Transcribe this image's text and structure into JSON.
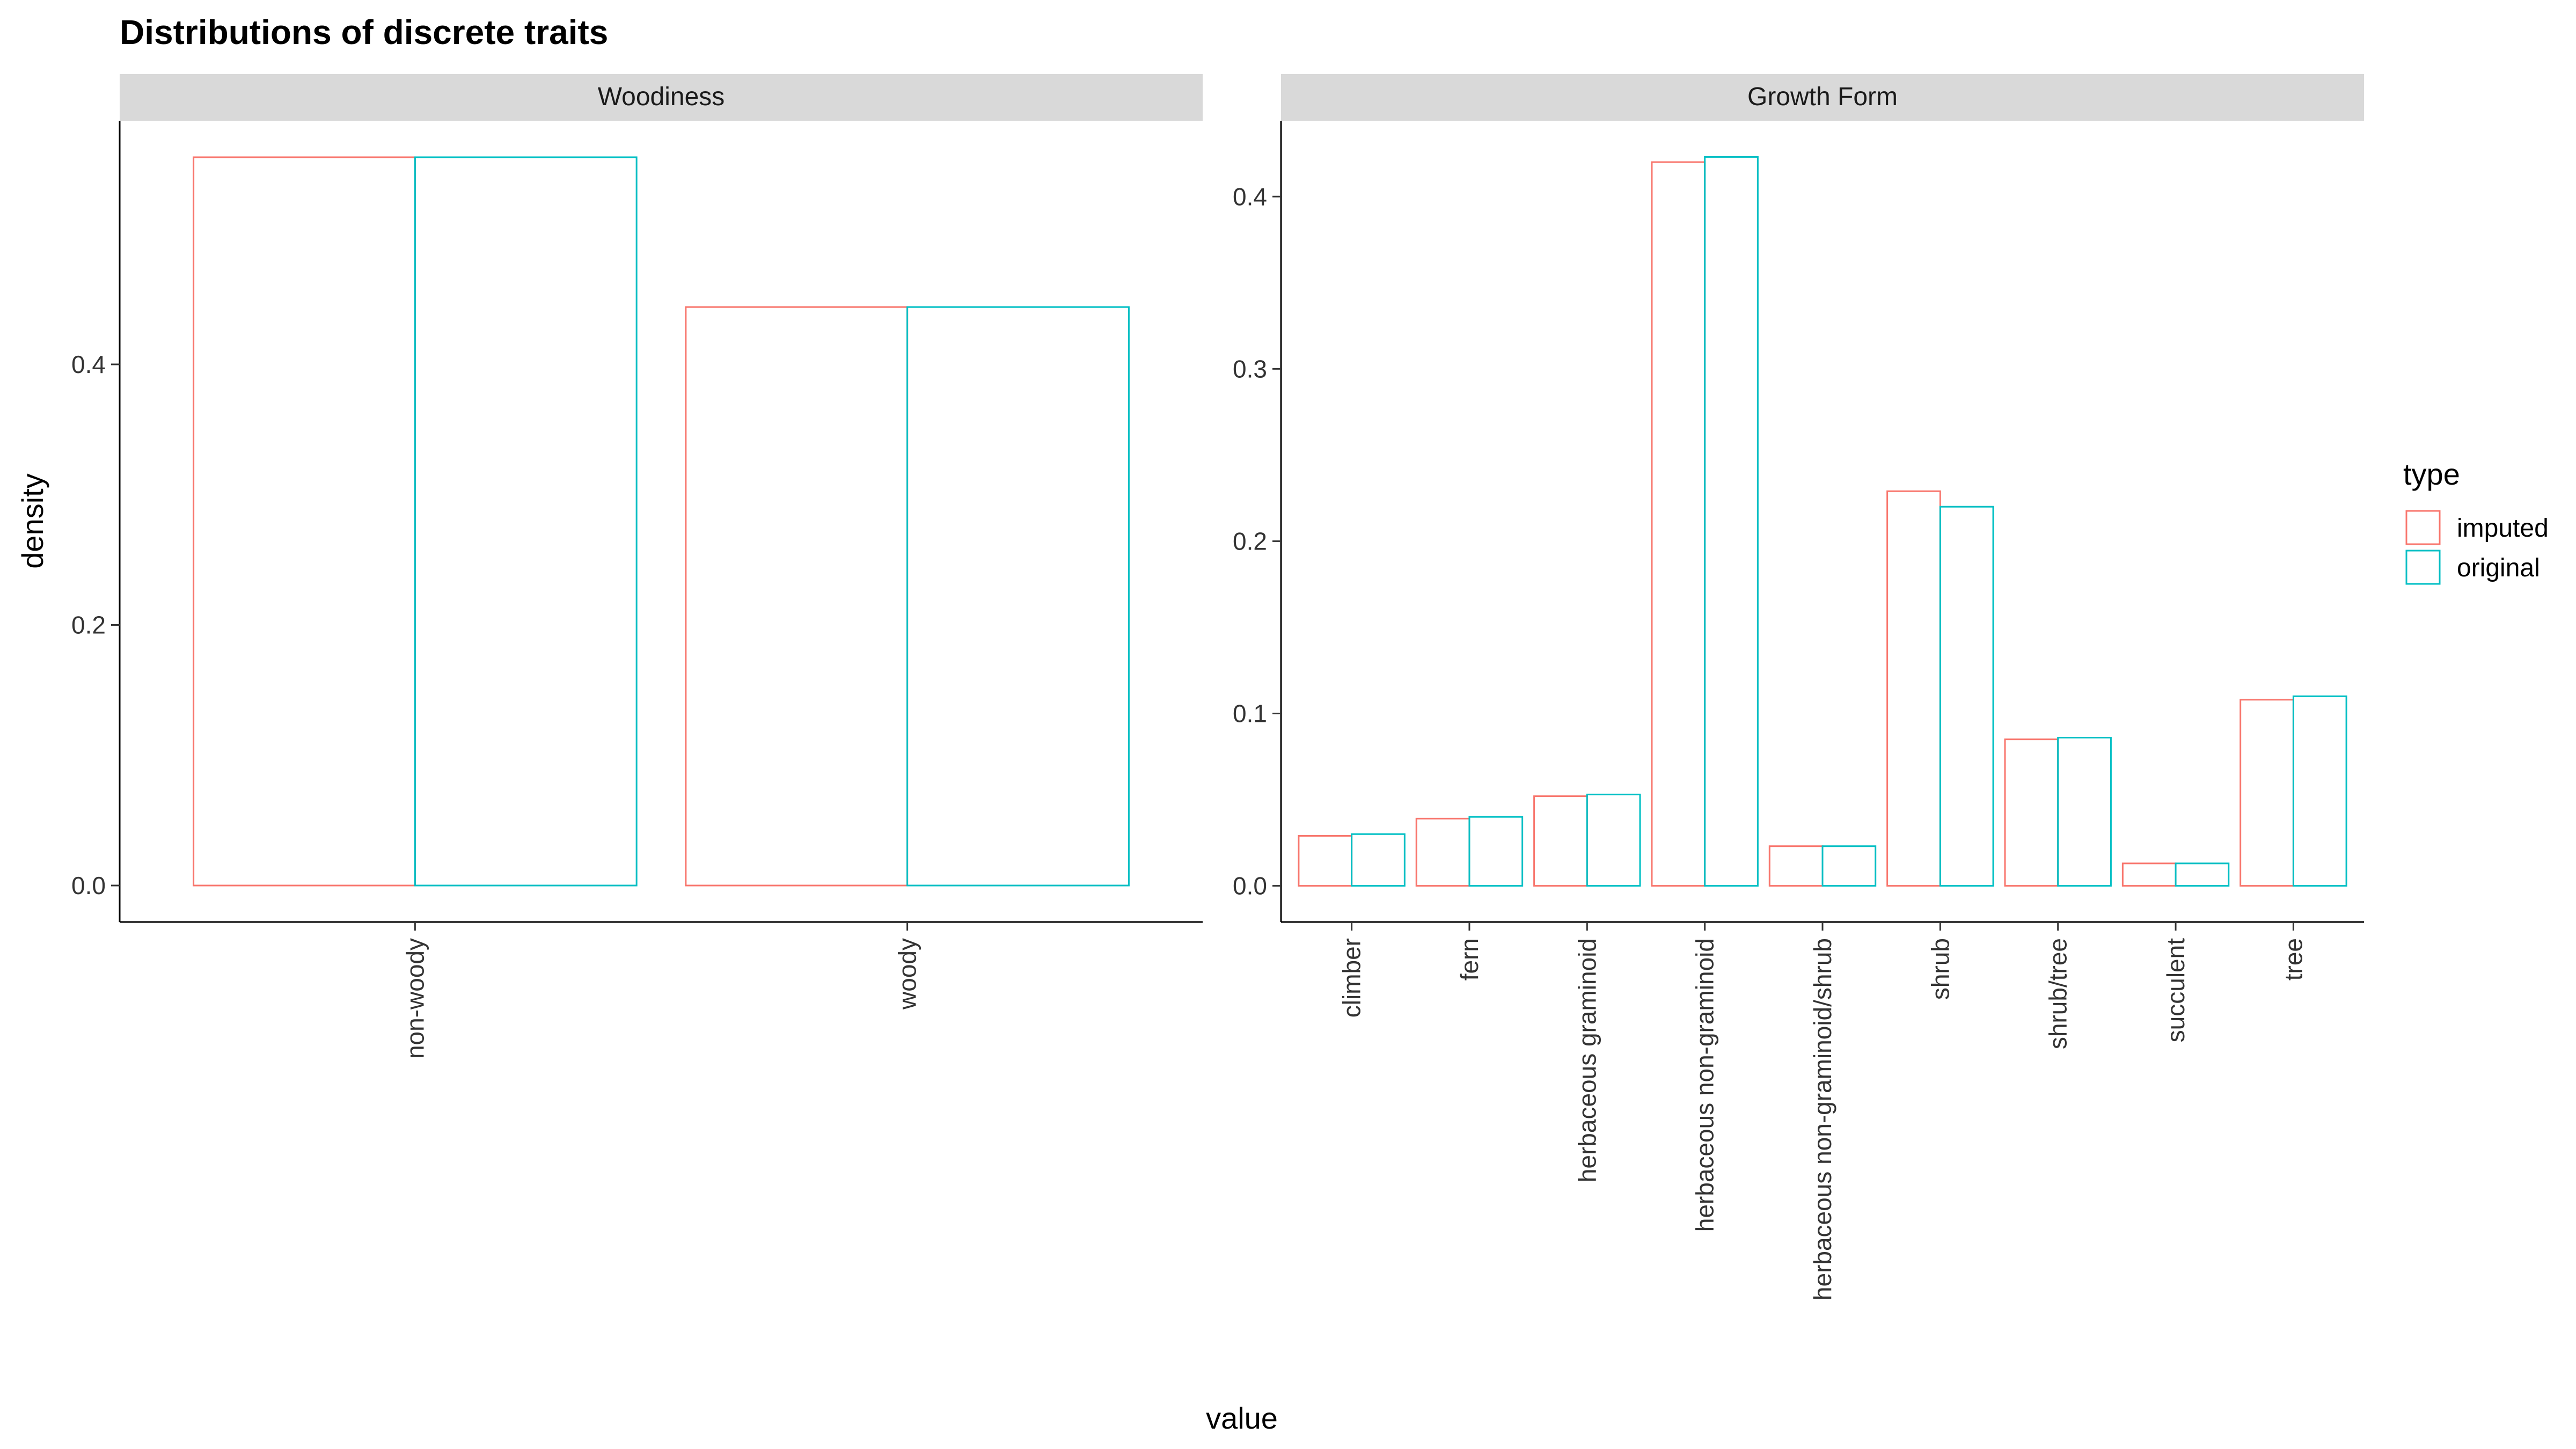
{
  "chart_data": {
    "type": "bar",
    "title": "Distributions of discrete traits",
    "xlabel": "value",
    "ylabel": "density",
    "legend": {
      "title": "type",
      "placement": "right",
      "entries": [
        "imputed",
        "original"
      ]
    },
    "colors": {
      "imputed": "#F8766D",
      "original": "#00BFC4"
    },
    "facets": [
      {
        "strip": "Woodiness",
        "categories": [
          "non-woody",
          "woody"
        ],
        "ylim": [
          -0.028,
          0.587
        ],
        "yticks": [
          0.0,
          0.2,
          0.4
        ],
        "series": [
          {
            "name": "imputed",
            "values": [
              0.559,
              0.444
            ]
          },
          {
            "name": "original",
            "values": [
              0.559,
              0.444
            ]
          }
        ]
      },
      {
        "strip": "Growth Form",
        "categories": [
          "climber",
          "fern",
          "herbaceous graminoid",
          "herbaceous non-graminoid",
          "herbaceous non-graminoid/shrub",
          "shrub",
          "shrub/tree",
          "succulent",
          "tree"
        ],
        "ylim": [
          -0.021,
          0.444
        ],
        "yticks": [
          0.0,
          0.1,
          0.2,
          0.3,
          0.4
        ],
        "series": [
          {
            "name": "imputed",
            "values": [
              0.029,
              0.039,
              0.052,
              0.42,
              0.023,
              0.229,
              0.085,
              0.013,
              0.108
            ]
          },
          {
            "name": "original",
            "values": [
              0.03,
              0.04,
              0.053,
              0.423,
              0.023,
              0.22,
              0.086,
              0.013,
              0.11
            ]
          }
        ]
      }
    ]
  }
}
